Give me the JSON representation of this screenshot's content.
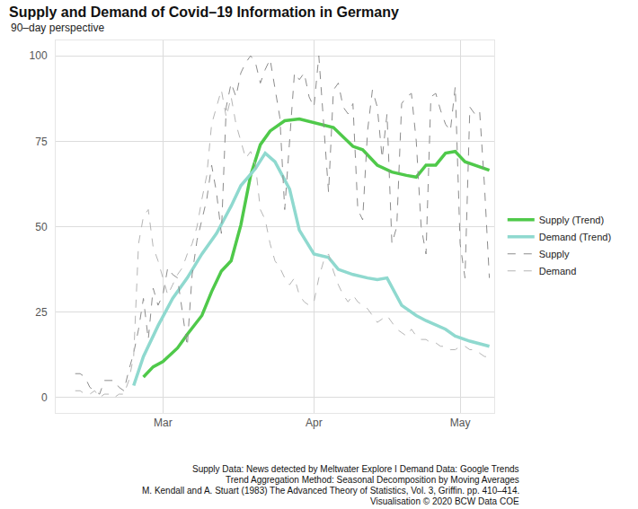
{
  "chart_data": {
    "type": "line",
    "title": "Supply and Demand of Covid–19 Information in Germany",
    "subtitle": "90–day perspective",
    "caption": [
      "Supply Data: News detected by Meltwater Explore I Demand Data: Google Trends",
      "Trend Aggregation Method: Seasonal Decomposition by Moving Averages",
      "M. Kendall and A. Stuart (1983) The Advanced Theory of Statistics, Vol. 3, Griffin. pp. 410–414.",
      "Visualisation © 2020 BCW Data COE"
    ],
    "xlim": [
      8,
      98
    ],
    "xticks": [
      {
        "value": 30,
        "label": "Mar"
      },
      {
        "value": 61,
        "label": "Apr"
      },
      {
        "value": 91,
        "label": "May"
      }
    ],
    "ylim": [
      -4.5,
      104.5
    ],
    "yticks": [
      0,
      25,
      50,
      75,
      100
    ],
    "grid": true,
    "legend": "right",
    "series": [
      {
        "name": "Supply (Trend)",
        "color": "#4fc94a",
        "line_style": "solid",
        "x": [
          26,
          28,
          30,
          33,
          35,
          38,
          40,
          42,
          44,
          46,
          48,
          50,
          52,
          55,
          58,
          61,
          65,
          69,
          71,
          74,
          77,
          80,
          82,
          84,
          86,
          88,
          90,
          92,
          94,
          97
        ],
        "values": [
          6,
          9,
          10.5,
          14.5,
          18.5,
          24,
          31,
          37,
          40,
          50.5,
          65,
          74,
          78,
          81,
          81.5,
          80.5,
          79,
          73.5,
          72.5,
          68,
          66,
          65,
          64.5,
          68,
          68,
          71.5,
          72,
          69,
          68,
          66.5
        ]
      },
      {
        "name": "Demand (Trend)",
        "color": "#8fd9cf",
        "line_style": "solid",
        "x": [
          24,
          26,
          29,
          32,
          35,
          38,
          41,
          44,
          46,
          49,
          51,
          53,
          56,
          58,
          61,
          64,
          66,
          69,
          72,
          74,
          76,
          79,
          82,
          84,
          88,
          90,
          93,
          97
        ],
        "values": [
          3.5,
          12,
          21,
          29,
          35,
          42,
          48,
          56,
          62,
          67,
          71.5,
          69,
          61,
          49,
          42,
          41,
          37.5,
          36,
          35,
          34.5,
          35,
          27,
          24,
          22.5,
          20,
          18,
          16.5,
          15
        ]
      },
      {
        "name": "Supply",
        "color": "#8c8c8c",
        "line_style": "dashed",
        "x": [
          12,
          13,
          14,
          15,
          16,
          17,
          18,
          19,
          20,
          21,
          22,
          23,
          24,
          25,
          26,
          27,
          28,
          29,
          30,
          31,
          32,
          33,
          34,
          35,
          36,
          37,
          38,
          39,
          40,
          41,
          42,
          43,
          44,
          45,
          46,
          47,
          48,
          49,
          50,
          51,
          52,
          53,
          54,
          55,
          56,
          57,
          58,
          59,
          60,
          61,
          62,
          63,
          64,
          65,
          66,
          67,
          68,
          69,
          70,
          71,
          72,
          73,
          74,
          75,
          76,
          77,
          78,
          79,
          80,
          81,
          82,
          83,
          84,
          85,
          86,
          87,
          88,
          89,
          90,
          91,
          92,
          93,
          94,
          95,
          96,
          97
        ],
        "values": [
          7,
          7,
          6,
          3,
          2,
          1,
          5,
          5,
          5,
          3,
          2,
          8,
          13,
          20,
          29,
          17,
          32,
          27,
          30,
          38,
          36,
          35,
          25,
          15,
          36,
          46,
          52,
          58,
          68,
          60,
          48,
          85,
          92,
          88,
          95,
          98,
          100,
          98,
          92,
          96,
          99,
          90,
          82,
          55,
          75,
          95,
          93,
          95,
          88,
          85,
          100,
          80,
          60,
          90,
          92,
          85,
          83,
          86,
          55,
          52,
          78,
          90,
          85,
          70,
          83,
          45,
          50,
          86,
          88,
          89,
          75,
          50,
          42,
          88,
          89,
          84,
          80,
          78,
          91,
          45,
          35,
          85,
          83,
          84,
          62,
          35
        ]
      },
      {
        "name": "Demand",
        "color": "#b5b5b5",
        "line_style": "dashed",
        "x": [
          12,
          13,
          14,
          15,
          16,
          17,
          18,
          19,
          20,
          21,
          22,
          23,
          24,
          25,
          26,
          27,
          28,
          29,
          30,
          31,
          32,
          33,
          34,
          35,
          36,
          37,
          38,
          39,
          40,
          41,
          42,
          43,
          44,
          45,
          46,
          47,
          48,
          49,
          50,
          51,
          52,
          53,
          54,
          55,
          56,
          57,
          58,
          59,
          60,
          61,
          62,
          63,
          64,
          65,
          66,
          67,
          68,
          69,
          70,
          71,
          72,
          73,
          74,
          75,
          76,
          77,
          78,
          79,
          80,
          81,
          82,
          83,
          84,
          85,
          86,
          87,
          88,
          89,
          90,
          91,
          92,
          93,
          94,
          95,
          96,
          97
        ],
        "values": [
          2,
          2,
          1,
          1,
          2,
          0,
          1,
          1,
          0,
          1,
          1,
          5,
          12,
          45,
          53,
          55,
          44,
          40,
          35,
          30,
          33,
          36,
          38,
          42,
          45,
          50,
          58,
          65,
          80,
          85,
          90,
          82,
          88,
          80,
          75,
          70,
          72,
          68,
          55,
          52,
          45,
          40,
          38,
          35,
          33,
          35,
          30,
          28,
          27,
          28,
          35,
          40,
          42,
          37,
          33,
          30,
          28,
          30,
          28,
          27,
          26,
          24,
          22,
          23,
          24,
          22,
          20,
          19,
          18,
          20,
          18,
          17,
          17,
          16,
          16,
          15,
          15,
          14,
          14,
          15,
          15,
          14,
          14,
          13,
          12,
          12
        ]
      }
    ]
  }
}
